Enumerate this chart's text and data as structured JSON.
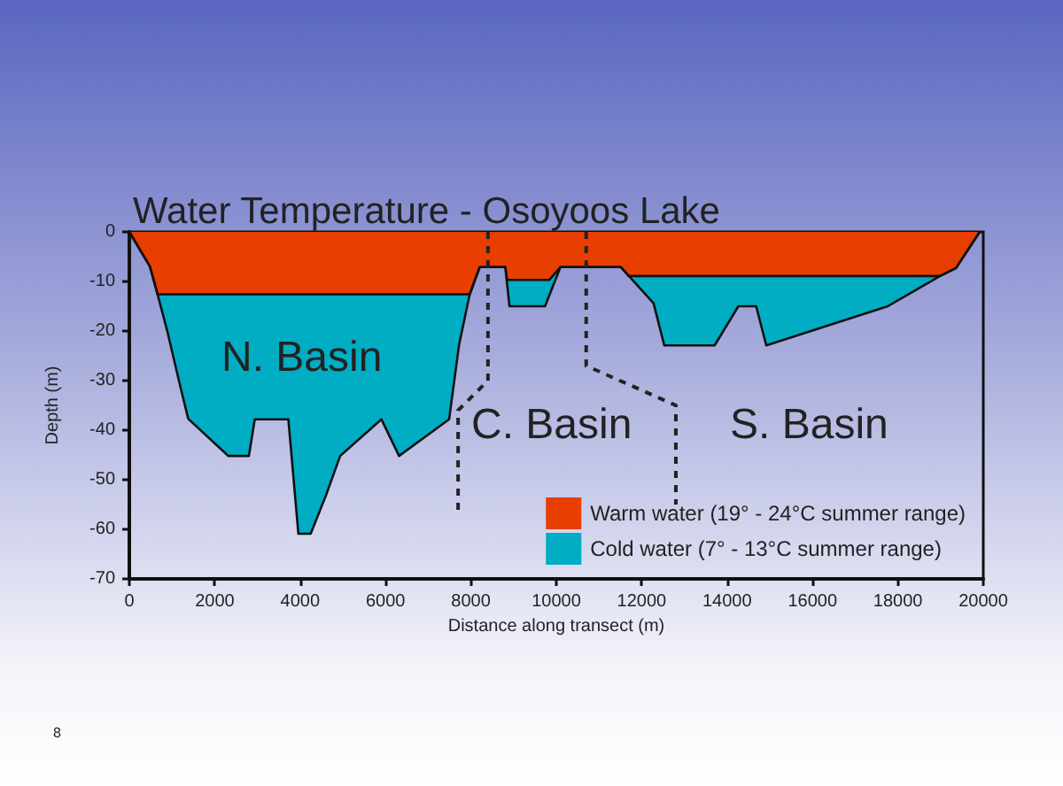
{
  "chart_data": {
    "type": "area",
    "title": "Water Temperature - Osoyoos Lake",
    "xlabel": "Distance along transect (m)",
    "ylabel": "Depth (m)",
    "xlim": [
      0,
      20000
    ],
    "xticks": [
      0,
      2000,
      4000,
      6000,
      8000,
      10000,
      12000,
      14000,
      16000,
      18000,
      20000
    ],
    "ylim": [
      -70,
      0
    ],
    "yticks": [
      0,
      -10,
      -20,
      -30,
      -40,
      -50,
      -60,
      -70
    ],
    "grid": false,
    "legend": "bottom right",
    "marker": "none",
    "annotations": [
      "N. Basin",
      "C. Basin",
      "S. Basin",
      "8"
    ],
    "series": [
      {
        "name": "Cold water (7° - 13°C summer range)",
        "color": "#00adc3",
        "x": [
          0,
          483,
          662,
          897,
          1172,
          1379,
          2317,
          2800,
          2938,
          3724,
          3959,
          4248,
          4621,
          4938,
          5903,
          6317,
          7490,
          7724,
          7972,
          8207,
          8806,
          8903,
          9736,
          10097,
          11514,
          12278,
          12528,
          13708,
          14264,
          14681,
          14917,
          17764,
          18986,
          19361,
          19917
        ],
        "values": [
          0,
          -7,
          -12.6,
          -20.3,
          -30.4,
          -37.7,
          -45.2,
          -45.2,
          -37.8,
          -37.8,
          -60.9,
          -60.9,
          -52.8,
          -45.2,
          -37.8,
          -45.2,
          -37.8,
          -22.7,
          -12.6,
          -7.1,
          -7.1,
          -15,
          -15,
          -7.1,
          -7.1,
          -14.4,
          -22.9,
          -22.9,
          -15,
          -15,
          -22.9,
          -15,
          -8.9,
          -7.3,
          0
        ]
      },
      {
        "name": "Warm water (19° - 24°C summer range)",
        "color": "#e83e00",
        "x": [
          0,
          483,
          662,
          7972,
          8207,
          8806,
          8850,
          9833,
          10097,
          11514,
          11694,
          18986,
          19361,
          19917
        ],
        "values": [
          0,
          -7,
          -12.6,
          -12.6,
          -7.1,
          -7.1,
          -9.7,
          -9.7,
          -7.1,
          -7.1,
          -8.9,
          -8.9,
          -7.3,
          0
        ]
      }
    ]
  }
}
